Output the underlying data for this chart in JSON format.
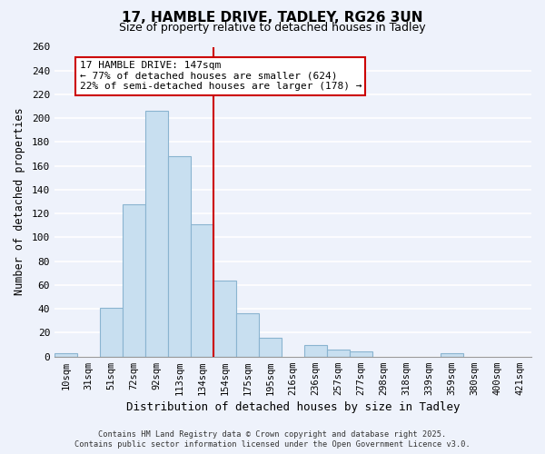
{
  "title": "17, HAMBLE DRIVE, TADLEY, RG26 3UN",
  "subtitle": "Size of property relative to detached houses in Tadley",
  "xlabel": "Distribution of detached houses by size in Tadley",
  "ylabel": "Number of detached properties",
  "bin_labels": [
    "10sqm",
    "31sqm",
    "51sqm",
    "72sqm",
    "92sqm",
    "113sqm",
    "134sqm",
    "154sqm",
    "175sqm",
    "195sqm",
    "216sqm",
    "236sqm",
    "257sqm",
    "277sqm",
    "298sqm",
    "318sqm",
    "339sqm",
    "359sqm",
    "380sqm",
    "400sqm",
    "421sqm"
  ],
  "bar_values": [
    3,
    0,
    41,
    128,
    206,
    168,
    111,
    64,
    36,
    16,
    0,
    10,
    6,
    4,
    0,
    0,
    0,
    3,
    0,
    0,
    0
  ],
  "bar_color": "#c8dff0",
  "bar_edge_color": "#8ab4d0",
  "background_color": "#eef2fb",
  "grid_color": "#ffffff",
  "vline_x_index": 7,
  "vline_color": "#cc0000",
  "annotation_title": "17 HAMBLE DRIVE: 147sqm",
  "annotation_line1": "← 77% of detached houses are smaller (624)",
  "annotation_line2": "22% of semi-detached houses are larger (178) →",
  "annotation_box_color": "white",
  "annotation_box_edge": "#cc0000",
  "ylim": [
    0,
    260
  ],
  "yticks": [
    0,
    20,
    40,
    60,
    80,
    100,
    120,
    140,
    160,
    180,
    200,
    220,
    240,
    260
  ],
  "footer_line1": "Contains HM Land Registry data © Crown copyright and database right 2025.",
  "footer_line2": "Contains public sector information licensed under the Open Government Licence v3.0."
}
